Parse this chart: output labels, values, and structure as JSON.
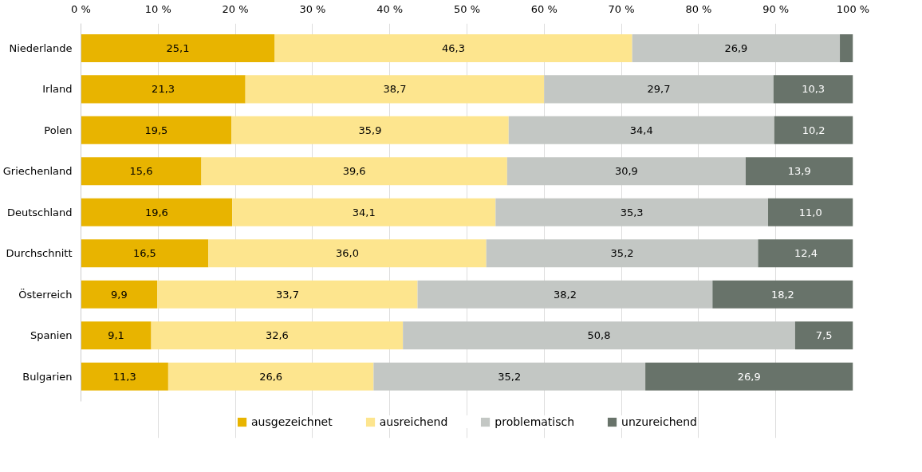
{
  "chart_data": {
    "type": "bar",
    "orientation": "horizontal",
    "stacked": true,
    "categories": [
      "Niederlande",
      "Irland",
      "Polen",
      "Griechenland",
      "Deutschland",
      "Durchschnitt",
      "Österreich",
      "Spanien",
      "Bulgarien"
    ],
    "series": [
      {
        "name": "ausgezeichnet",
        "color": "#e8b400",
        "values": [
          25.1,
          21.3,
          19.5,
          15.6,
          19.6,
          16.5,
          9.9,
          9.1,
          11.3
        ],
        "value_labels": [
          "25,1",
          "21,3",
          "19,5",
          "15,6",
          "19,6",
          "16,5",
          "9,9",
          "9,1",
          "11,3"
        ]
      },
      {
        "name": "ausreichend",
        "color": "#fde58e",
        "values": [
          46.3,
          38.7,
          35.9,
          39.6,
          34.1,
          36.0,
          33.7,
          32.6,
          26.6
        ],
        "value_labels": [
          "46,3",
          "38,7",
          "35,9",
          "39,6",
          "34,1",
          "36,0",
          "33,7",
          "32,6",
          "26,6"
        ]
      },
      {
        "name": "problematisch",
        "color": "#c3c7c4",
        "values": [
          26.9,
          29.7,
          34.4,
          30.9,
          35.3,
          35.2,
          38.2,
          50.8,
          35.2
        ],
        "value_labels": [
          "26,9",
          "29,7",
          "34,4",
          "30,9",
          "35,3",
          "35,2",
          "38,2",
          "50,8",
          "35,2"
        ]
      },
      {
        "name": "unzureichend",
        "color": "#68736a",
        "values": [
          1.7,
          10.3,
          10.2,
          13.9,
          11.0,
          12.4,
          18.2,
          7.5,
          26.9
        ],
        "value_labels": [
          null,
          "10,3",
          "10,2",
          "13,9",
          "11,0",
          "12,4",
          "18,2",
          "7,5",
          "26,9"
        ]
      }
    ],
    "xlim": [
      0,
      100
    ],
    "xticks": [
      {
        "value": 0,
        "label": "0 %"
      },
      {
        "value": 10,
        "label": "10 %"
      },
      {
        "value": 20,
        "label": "20 %"
      },
      {
        "value": 30,
        "label": "30 %"
      },
      {
        "value": 40,
        "label": "40 %"
      },
      {
        "value": 50,
        "label": "50 %"
      },
      {
        "value": 60,
        "label": "60 %"
      },
      {
        "value": 70,
        "label": "70 %"
      },
      {
        "value": 80,
        "label": "80 %"
      },
      {
        "value": 90,
        "label": "90 %"
      },
      {
        "value": 100,
        "label": "100 %"
      }
    ],
    "grid": "x",
    "legend": "bottom"
  }
}
